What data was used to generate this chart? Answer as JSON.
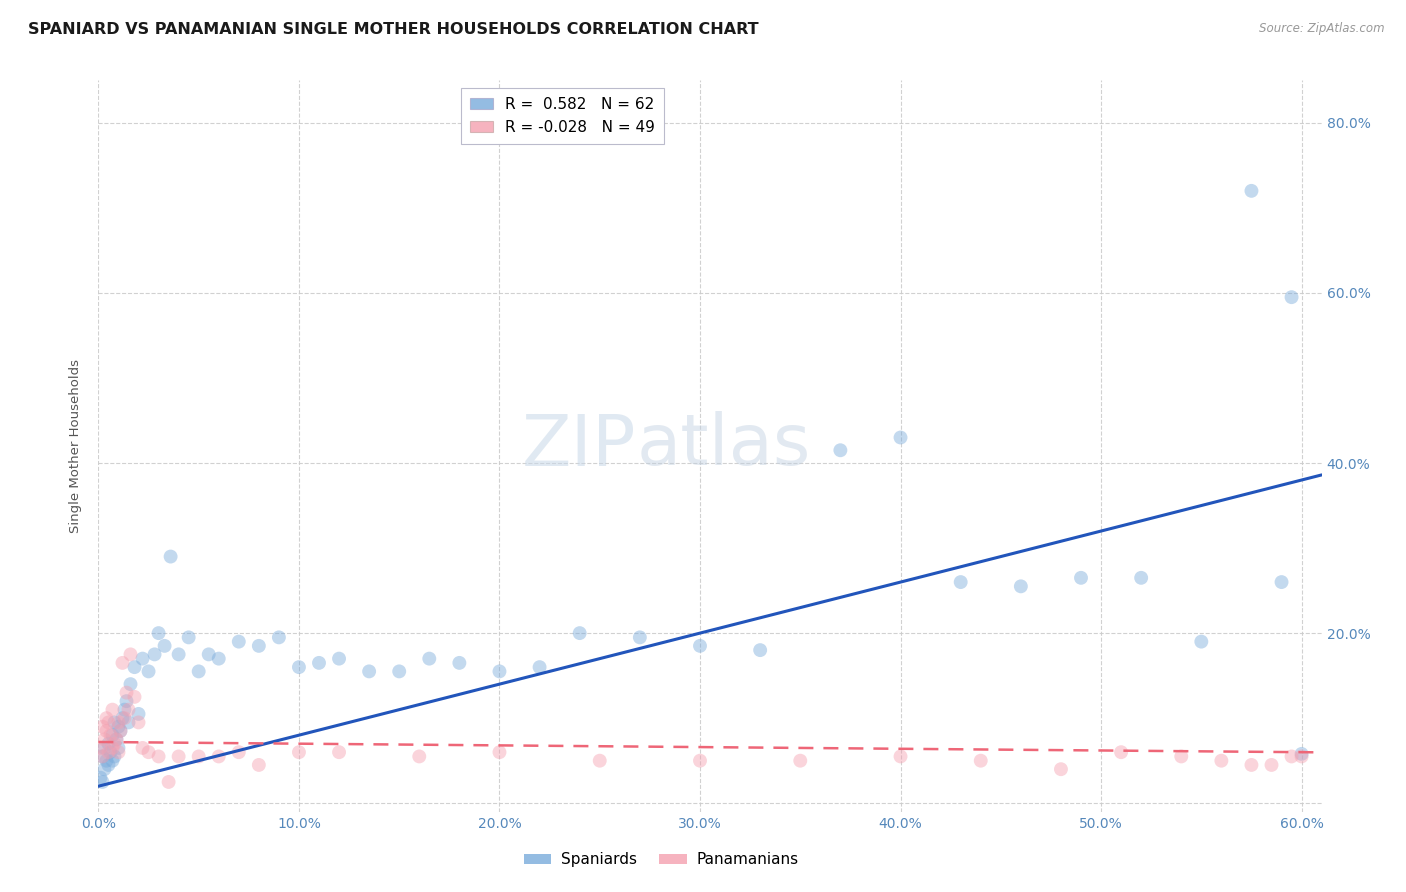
{
  "title": "SPANIARD VS PANAMANIAN SINGLE MOTHER HOUSEHOLDS CORRELATION CHART",
  "source": "Source: ZipAtlas.com",
  "ylabel": "Single Mother Households",
  "watermark_zip": "ZIP",
  "watermark_atlas": "atlas",
  "r_spaniard": 0.582,
  "n_spaniard": 62,
  "r_panamanian": -0.028,
  "n_panamanian": 49,
  "spaniard_color": "#7aabdb",
  "panamanian_color": "#f4a0b0",
  "line_spaniard_color": "#2255bb",
  "line_panamanian_color": "#ee6677",
  "spaniard_x": [
    0.001,
    0.002,
    0.002,
    0.003,
    0.003,
    0.004,
    0.005,
    0.005,
    0.006,
    0.007,
    0.007,
    0.008,
    0.008,
    0.009,
    0.01,
    0.01,
    0.011,
    0.012,
    0.013,
    0.014,
    0.015,
    0.016,
    0.018,
    0.02,
    0.022,
    0.025,
    0.028,
    0.03,
    0.033,
    0.036,
    0.04,
    0.045,
    0.05,
    0.055,
    0.06,
    0.07,
    0.08,
    0.09,
    0.1,
    0.11,
    0.12,
    0.135,
    0.15,
    0.165,
    0.18,
    0.2,
    0.22,
    0.24,
    0.27,
    0.3,
    0.33,
    0.37,
    0.4,
    0.43,
    0.46,
    0.49,
    0.52,
    0.55,
    0.575,
    0.59,
    0.595,
    0.6
  ],
  "spaniard_y": [
    0.03,
    0.025,
    0.055,
    0.04,
    0.065,
    0.05,
    0.045,
    0.07,
    0.06,
    0.05,
    0.08,
    0.055,
    0.095,
    0.075,
    0.065,
    0.09,
    0.085,
    0.1,
    0.11,
    0.12,
    0.095,
    0.14,
    0.16,
    0.105,
    0.17,
    0.155,
    0.175,
    0.2,
    0.185,
    0.29,
    0.175,
    0.195,
    0.155,
    0.175,
    0.17,
    0.19,
    0.185,
    0.195,
    0.16,
    0.165,
    0.17,
    0.155,
    0.155,
    0.17,
    0.165,
    0.155,
    0.16,
    0.2,
    0.195,
    0.185,
    0.18,
    0.415,
    0.43,
    0.26,
    0.255,
    0.265,
    0.265,
    0.19,
    0.72,
    0.26,
    0.595,
    0.058
  ],
  "panamanian_x": [
    0.001,
    0.002,
    0.002,
    0.003,
    0.004,
    0.004,
    0.005,
    0.005,
    0.006,
    0.007,
    0.007,
    0.008,
    0.009,
    0.01,
    0.01,
    0.011,
    0.012,
    0.013,
    0.014,
    0.015,
    0.016,
    0.018,
    0.02,
    0.022,
    0.025,
    0.03,
    0.035,
    0.04,
    0.05,
    0.06,
    0.07,
    0.08,
    0.1,
    0.12,
    0.16,
    0.2,
    0.25,
    0.3,
    0.35,
    0.4,
    0.44,
    0.48,
    0.51,
    0.54,
    0.56,
    0.575,
    0.585,
    0.595,
    0.6
  ],
  "panamanian_y": [
    0.065,
    0.055,
    0.09,
    0.075,
    0.1,
    0.085,
    0.06,
    0.095,
    0.08,
    0.065,
    0.11,
    0.07,
    0.075,
    0.06,
    0.095,
    0.085,
    0.165,
    0.1,
    0.13,
    0.11,
    0.175,
    0.125,
    0.095,
    0.065,
    0.06,
    0.055,
    0.025,
    0.055,
    0.055,
    0.055,
    0.06,
    0.045,
    0.06,
    0.06,
    0.055,
    0.06,
    0.05,
    0.05,
    0.05,
    0.055,
    0.05,
    0.04,
    0.06,
    0.055,
    0.05,
    0.045,
    0.045,
    0.055,
    0.055
  ],
  "xlim": [
    0.0,
    0.61
  ],
  "ylim": [
    -0.01,
    0.85
  ],
  "xticks": [
    0.0,
    0.1,
    0.2,
    0.3,
    0.4,
    0.5,
    0.6
  ],
  "yticks_right": [
    0.2,
    0.4,
    0.6,
    0.8
  ],
  "background_color": "#ffffff",
  "grid_color": "#cccccc",
  "tick_label_color": "#5588bb",
  "title_fontsize": 11.5,
  "axis_label_fontsize": 9.5,
  "tick_fontsize": 10,
  "marker_size": 100,
  "marker_alpha": 0.45,
  "legend_line1": "R =  0.582   N = 62",
  "legend_line2": "R = -0.028   N = 49"
}
